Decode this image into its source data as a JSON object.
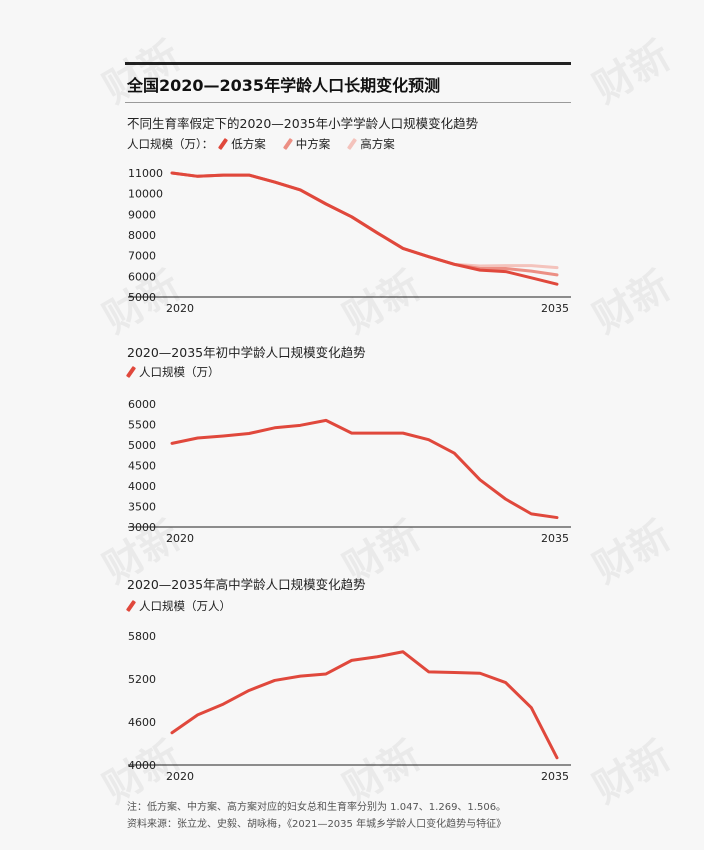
{
  "header": {
    "title": "全国2020—2035年学龄人口长期变化预测"
  },
  "charts": {
    "primary": {
      "subtitle": "不同生育率假定下的2020—2035年小学学龄人口规模变化趋势",
      "legend_prefix": "人口规模（万）：",
      "legend": [
        "低方案",
        "中方案",
        "高方案"
      ]
    },
    "junior": {
      "subtitle": "2020—2035年初中学龄人口规模变化趋势",
      "legend": "人口规模（万）"
    },
    "senior": {
      "subtitle": "2020—2035年高中学龄人口规模变化趋势",
      "legend": "人口规模（万人）"
    }
  },
  "notes": {
    "note1": "注：低方案、中方案、高方案对应的妇女总和生育率分别为 1.047、1.269、1.506。",
    "note2": "资料来源：张立龙、史毅、胡咏梅，《2021—2035 年城乡学龄人口变化趋势与特征》"
  },
  "watermark": "财新",
  "colors": {
    "low": "#e0483c",
    "mid": "#ec8f84",
    "high": "#f4c3bc",
    "axis": "#222222"
  },
  "chart_data": [
    {
      "type": "line",
      "x": [
        2020,
        2021,
        2022,
        2023,
        2024,
        2025,
        2026,
        2027,
        2028,
        2029,
        2030,
        2031,
        2032,
        2033,
        2034,
        2035
      ],
      "series": [
        {
          "name": "低方案",
          "values": [
            11000,
            10840,
            10900,
            10900,
            10560,
            10180,
            9500,
            8880,
            8100,
            7350,
            6950,
            6580,
            6300,
            6230,
            5930,
            5620
          ]
        },
        {
          "name": "中方案",
          "values": [
            11000,
            10840,
            10900,
            10900,
            10560,
            10180,
            9500,
            8880,
            8100,
            7350,
            6950,
            6580,
            6380,
            6380,
            6250,
            6070
          ]
        },
        {
          "name": "高方案",
          "values": [
            11000,
            10840,
            10900,
            10900,
            10560,
            10180,
            9500,
            8880,
            8100,
            7350,
            6950,
            6580,
            6500,
            6520,
            6520,
            6420
          ]
        }
      ],
      "xticks": [
        "2020",
        "2035"
      ],
      "yticks": [
        5000,
        6000,
        7000,
        8000,
        9000,
        10000,
        11000
      ],
      "ylim": [
        5000,
        11000
      ],
      "xlim": [
        2020,
        2035
      ],
      "grid": false
    },
    {
      "type": "line",
      "x": [
        2020,
        2021,
        2022,
        2023,
        2024,
        2025,
        2026,
        2027,
        2028,
        2029,
        2030,
        2031,
        2032,
        2033,
        2034,
        2035
      ],
      "series": [
        {
          "values": [
            5040,
            5170,
            5220,
            5280,
            5420,
            5480,
            5600,
            5290,
            5290,
            5290,
            5130,
            4800,
            4150,
            3680,
            3320,
            3230
          ]
        }
      ],
      "xticks": [
        "2020",
        "2035"
      ],
      "yticks": [
        3000,
        3500,
        4000,
        4500,
        5000,
        5500,
        6000
      ],
      "ylim": [
        3000,
        6000
      ],
      "xlim": [
        2020,
        2035
      ],
      "grid": false
    },
    {
      "type": "line",
      "x": [
        2020,
        2021,
        2022,
        2023,
        2024,
        2025,
        2026,
        2027,
        2028,
        2029,
        2030,
        2031,
        2032,
        2033,
        2034,
        2035
      ],
      "series": [
        {
          "values": [
            4450,
            4700,
            4850,
            5040,
            5180,
            5240,
            5270,
            5460,
            5510,
            5580,
            5300,
            5290,
            5280,
            5150,
            4800,
            4100
          ]
        }
      ],
      "xticks": [
        "2020",
        "2035"
      ],
      "yticks": [
        4000,
        4600,
        5200,
        5800
      ],
      "ylim": [
        4000,
        5800
      ],
      "xlim": [
        2020,
        2035
      ],
      "grid": false
    }
  ]
}
